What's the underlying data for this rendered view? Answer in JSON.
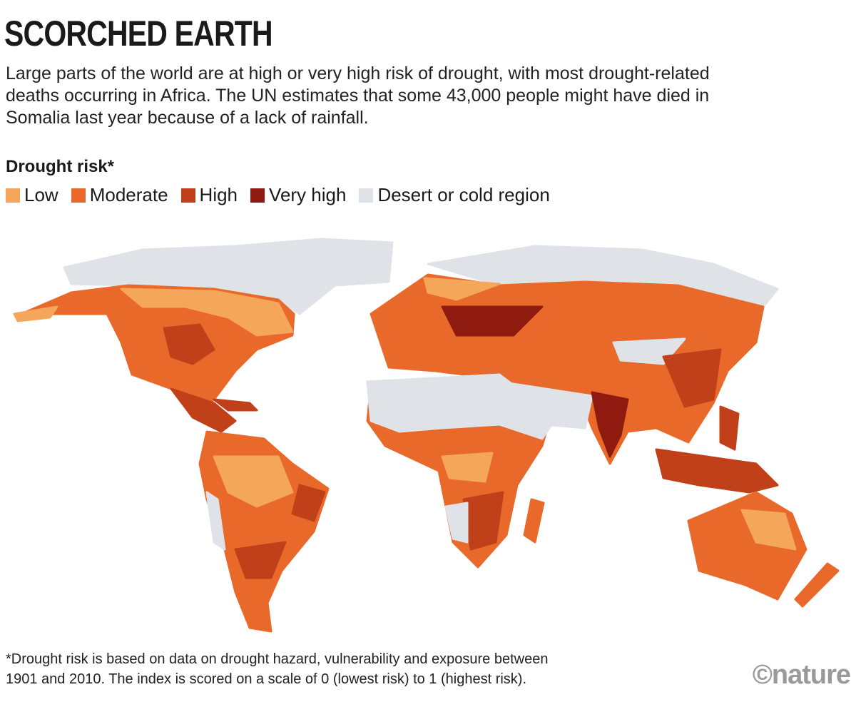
{
  "header": {
    "title": "SCORCHED EARTH",
    "subtitle": "Large parts of the world are at high or very high risk of drought, with most drought-related deaths occurring in Africa. The UN estimates that some 43,000 people might have died in Somalia last year because of a lack of rainfall."
  },
  "legend": {
    "title": "Drought risk*",
    "items": [
      {
        "label": "Low",
        "color": "#f4a65a"
      },
      {
        "label": "Moderate",
        "color": "#e8692a"
      },
      {
        "label": "High",
        "color": "#c0401a"
      },
      {
        "label": "Very high",
        "color": "#8e1a10"
      },
      {
        "label": "Desert or cold region",
        "color": "#dfe3e8"
      }
    ]
  },
  "footnote": {
    "line1": "*Drought risk is based on data on drought hazard, vulnerability and exposure between",
    "line2": "1901 and 2010. The index is scored on a scale of 0 (lowest risk) to 1 (highest risk)."
  },
  "logo": "©nature"
}
